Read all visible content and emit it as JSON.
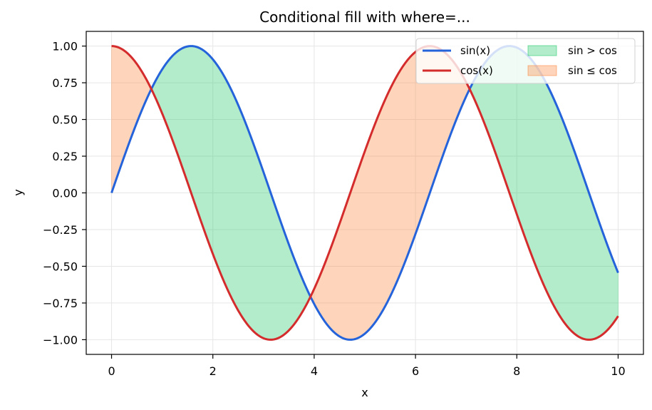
{
  "chart_data": {
    "type": "line",
    "title": "Conditional fill with where=...",
    "xlabel": "x",
    "ylabel": "y",
    "xlim": [
      -0.5,
      10.5
    ],
    "ylim": [
      -1.1,
      1.1
    ],
    "x_ticks": [
      0,
      2,
      4,
      6,
      8,
      10
    ],
    "x_tick_labels": [
      "0",
      "2",
      "4",
      "6",
      "8",
      "10"
    ],
    "y_ticks": [
      1.0,
      0.75,
      0.5,
      0.25,
      0.0,
      -0.25,
      -0.5,
      -0.75,
      -1.0
    ],
    "y_tick_labels": [
      "1.00",
      "0.75",
      "0.50",
      "0.25",
      "0.00",
      "−0.25",
      "−0.50",
      "−0.75",
      "−1.00"
    ],
    "grid": true,
    "legend_position": "top-right",
    "x_range": [
      0,
      10
    ],
    "series": [
      {
        "name": "sin(x)",
        "function": "sin",
        "color": "#2563db"
      },
      {
        "name": "cos(x)",
        "function": "cos",
        "color": "#d42c2c"
      }
    ],
    "fills": [
      {
        "name": "sin > cos",
        "condition": "sin > cos",
        "color": "#2ecc71"
      },
      {
        "name": "sin ≤ cos",
        "condition": "sin <= cos",
        "color": "#fb8c47"
      }
    ]
  }
}
